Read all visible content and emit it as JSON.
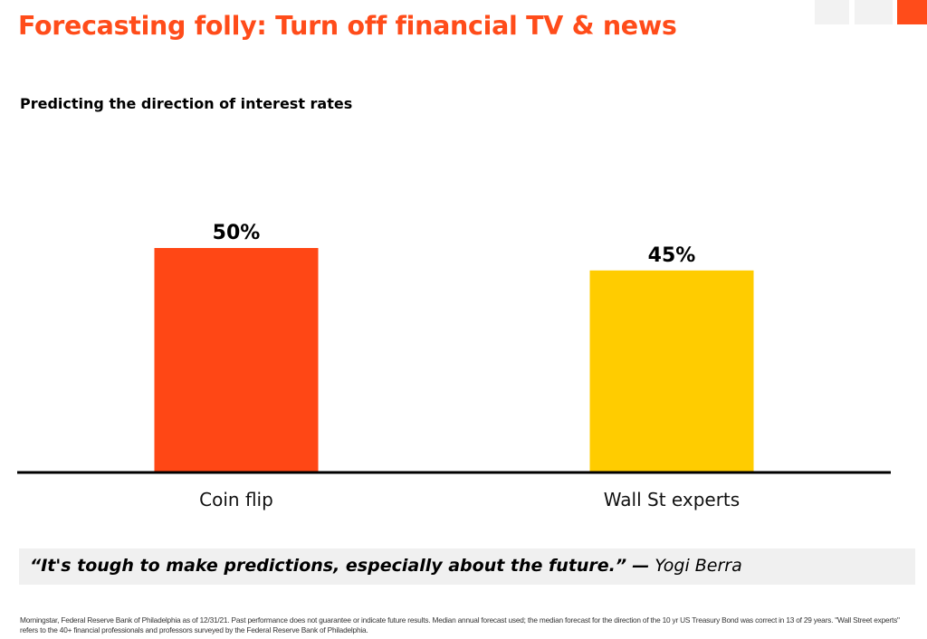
{
  "header": {
    "title": "Forecasting folly:  Turn off financial TV & news",
    "subtitle": "Predicting the direction of interest rates"
  },
  "chart_data": {
    "type": "bar",
    "title": "Predicting the direction of interest rates",
    "categories": [
      "Coin flip",
      "Wall St experts"
    ],
    "values": [
      50,
      45
    ],
    "value_labels": [
      "50%",
      "45%"
    ],
    "colors": [
      "#ff4715",
      "#ffcc00"
    ],
    "ylim": [
      0,
      50
    ],
    "grid": false,
    "legend": "none",
    "xlabel": "",
    "ylabel": ""
  },
  "quote": {
    "text": "“It's tough to make predictions, especially about the future.”",
    "dash": "—",
    "author": "Yogi Berra"
  },
  "footnote": "Morningstar, Federal Reserve Bank of Philadelphia as of 12/31/21. Past performance does not guarantee or indicate future results. Median annual forecast used; the median forecast for the direction of the 10 yr US Treasury Bond was correct in 13 of 29 years.  \"Wall Street experts\" refers to the 40+ financial professionals and professors surveyed by the Federal Reserve Bank of Philadelphia.",
  "colors": {
    "accent": "#ff4c1a",
    "quote_background": "#f0f0f0"
  }
}
